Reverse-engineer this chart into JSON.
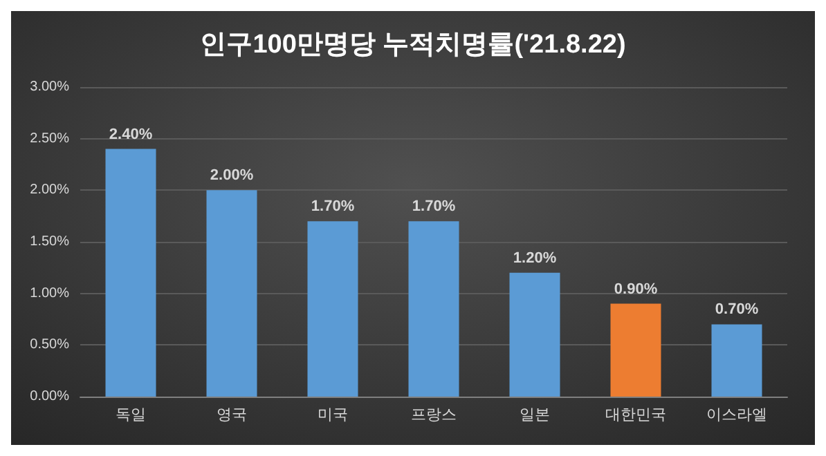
{
  "chart_data": {
    "type": "bar",
    "title": "인구100만명당 누적치명률('21.8.22)",
    "categories": [
      "독일",
      "영국",
      "미국",
      "프랑스",
      "일본",
      "대한민국",
      "이스라엘"
    ],
    "values": [
      2.4,
      2.0,
      1.7,
      1.7,
      1.2,
      0.9,
      0.7
    ],
    "colors": [
      "#5b9bd5",
      "#5b9bd5",
      "#5b9bd5",
      "#5b9bd5",
      "#5b9bd5",
      "#ed7d31",
      "#5b9bd5"
    ],
    "value_labels": [
      "2.40%",
      "2.00%",
      "1.70%",
      "1.70%",
      "1.20%",
      "0.90%",
      "0.70%"
    ],
    "ylim": [
      0,
      3
    ],
    "yticks": [
      {
        "value": 0,
        "label": "0.00%"
      },
      {
        "value": 0.5,
        "label": "0.50%"
      },
      {
        "value": 1,
        "label": "1.00%"
      },
      {
        "value": 1.5,
        "label": "1.50%"
      },
      {
        "value": 2,
        "label": "2.00%"
      },
      {
        "value": 2.5,
        "label": "2.50%"
      },
      {
        "value": 3,
        "label": "3.00%"
      }
    ],
    "grid": "y"
  }
}
